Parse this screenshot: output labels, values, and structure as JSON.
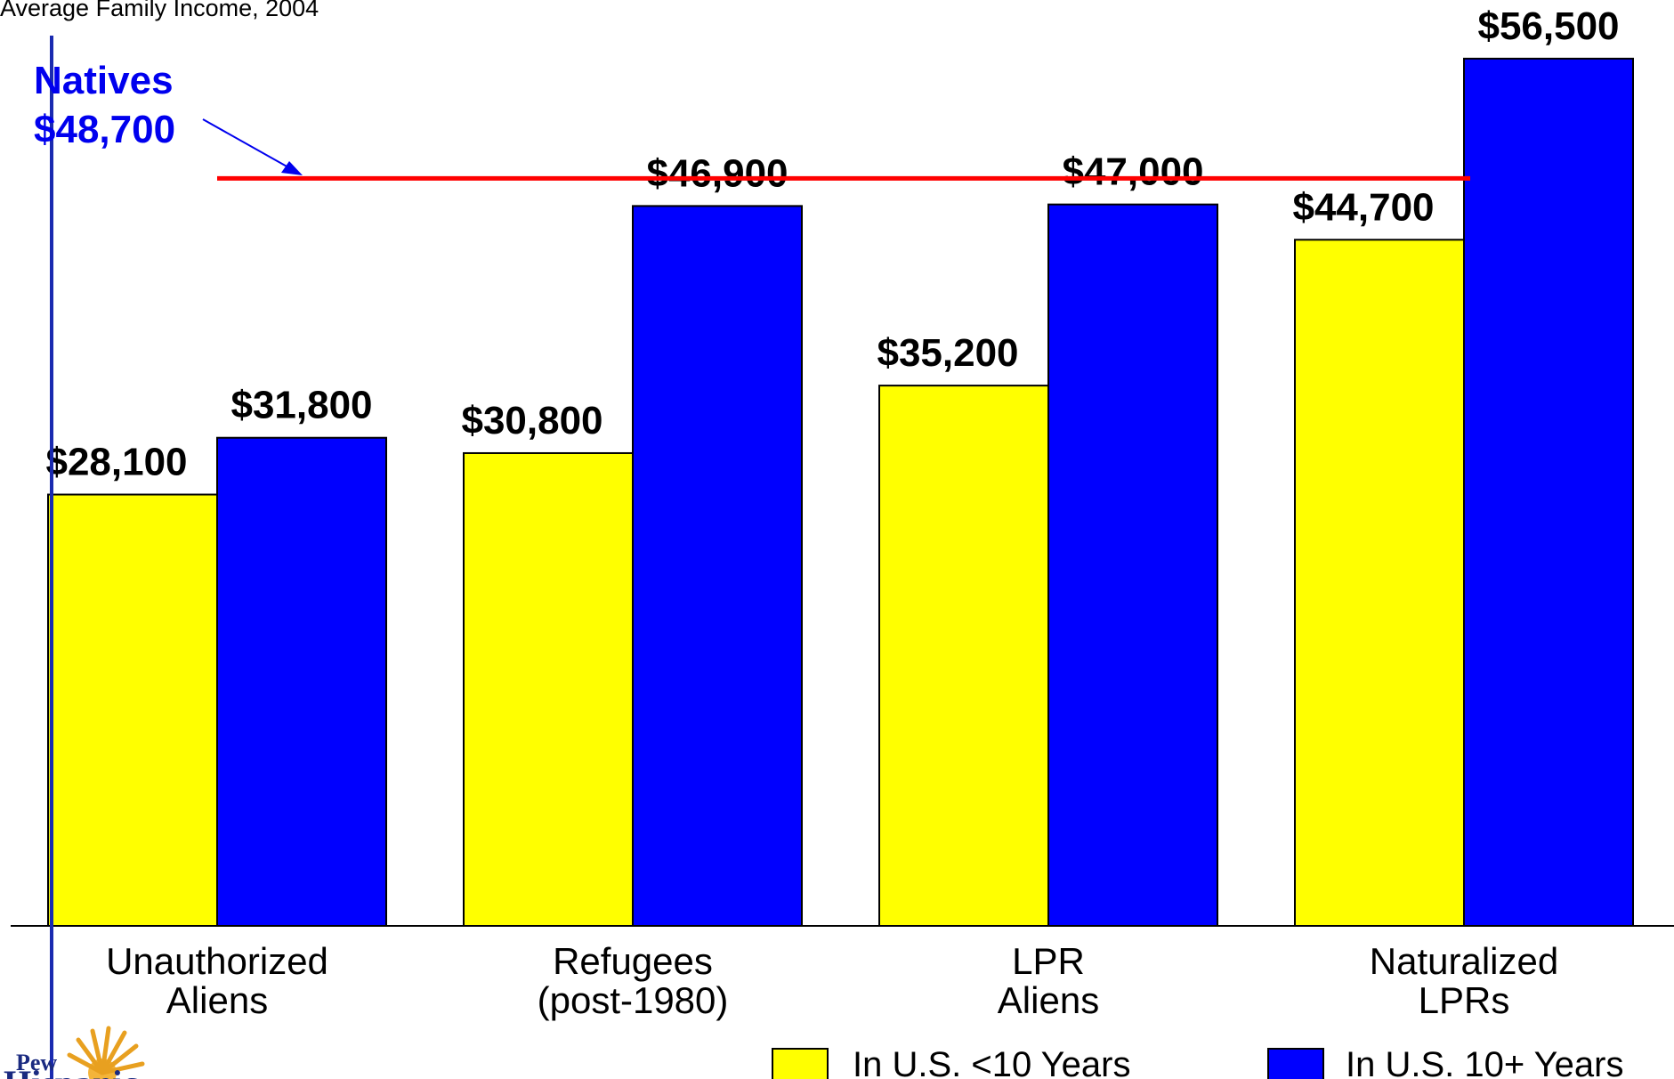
{
  "chart_data": {
    "type": "bar",
    "subtitle": "Average Family Income, 2004",
    "categories": [
      [
        "Unauthorized",
        "Aliens"
      ],
      [
        "Refugees",
        "(post-1980)"
      ],
      [
        "LPR",
        "Aliens"
      ],
      [
        "Naturalized",
        "LPRs"
      ]
    ],
    "series": [
      {
        "name": "In U.S. <10 Years",
        "color": "#ffff00",
        "values": [
          28100,
          30800,
          35200,
          44700
        ],
        "labels": [
          "$28,100",
          "$30,800",
          "$35,200",
          "$44,700"
        ]
      },
      {
        "name": "In U.S. 10+ Years",
        "color": "#0000ff",
        "values": [
          31800,
          46900,
          47000,
          56500
        ],
        "labels": [
          "$31,800",
          "$46,900",
          "$47,000",
          "$56,500"
        ]
      }
    ],
    "reference_line": {
      "value": 48700,
      "label_line1": "Natives",
      "label_line2": "$48,700",
      "line_color": "#ff0000",
      "text_color": "#0000ee"
    },
    "ylim": [
      0,
      58000
    ],
    "grid": false,
    "legend": "bottom-right"
  },
  "logo": {
    "text_top": "Pew",
    "text_bottom": "Hispanic",
    "icon": "sunburst-logo-icon"
  }
}
